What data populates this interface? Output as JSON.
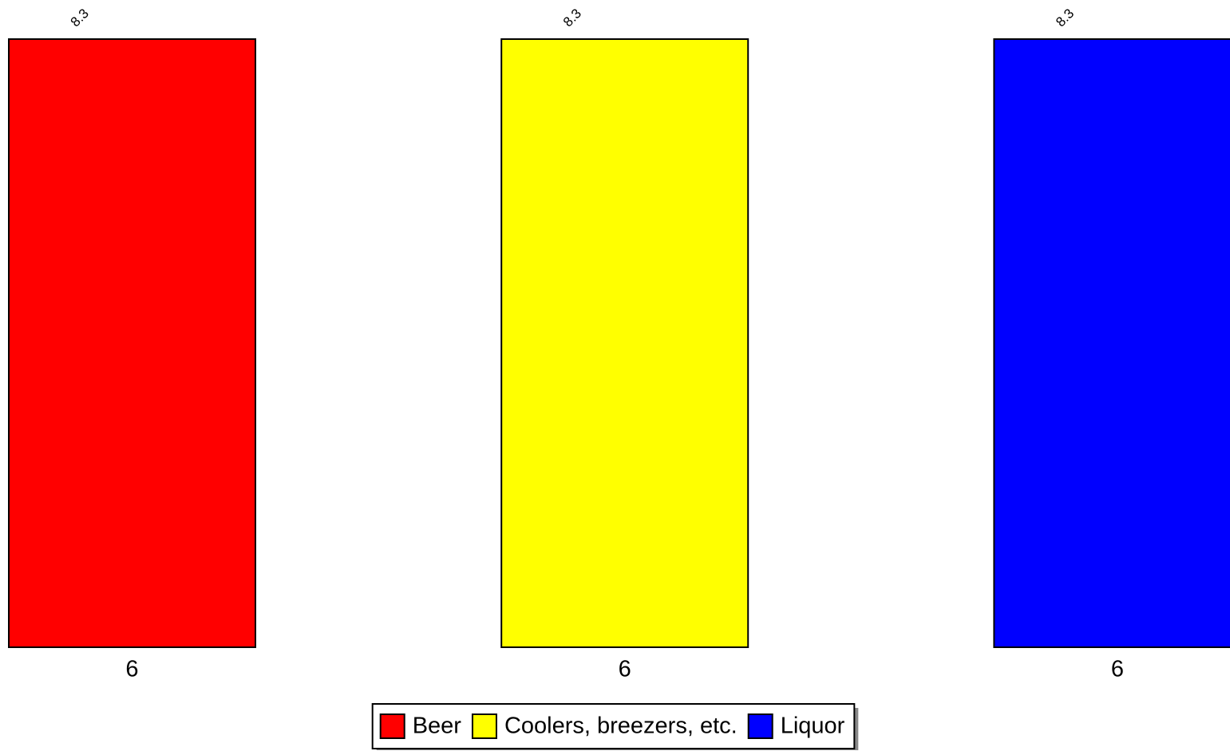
{
  "chart_data": {
    "type": "bar",
    "categories": [
      "6",
      "6",
      "6"
    ],
    "series": [
      {
        "name": "Beer",
        "color": "#ff0000",
        "values": [
          8.3,
          null,
          null
        ]
      },
      {
        "name": "Coolers, breezers, etc.",
        "color": "#ffff00",
        "values": [
          null,
          8.3,
          null
        ]
      },
      {
        "name": "Liquor",
        "color": "#0000ff",
        "values": [
          null,
          null,
          8.3
        ]
      }
    ],
    "ylim": [
      0,
      8.3
    ],
    "legend": "bottom"
  }
}
